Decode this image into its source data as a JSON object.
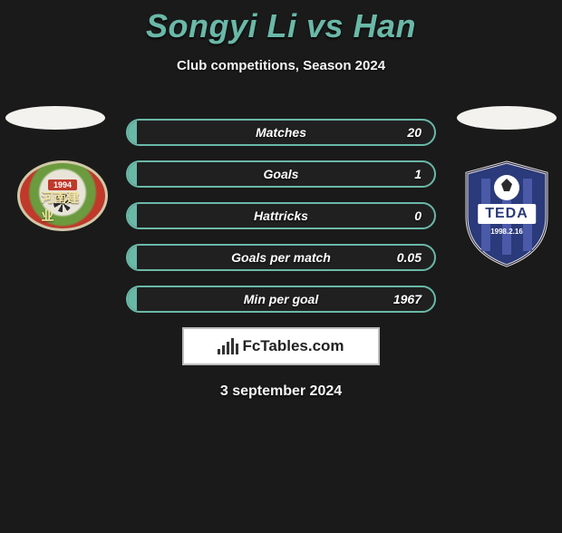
{
  "title": "Songyi Li vs Han",
  "subtitle": "Club competitions, Season 2024",
  "date_line": "3 september 2024",
  "branding": "FcTables.com",
  "colors": {
    "accent": "#6ab8a8",
    "background": "#1a1a1a",
    "ellipse": "#f4f2ee",
    "text": "#ffffff"
  },
  "stats": [
    {
      "label": "Matches",
      "value": "20",
      "fill_pct": 3
    },
    {
      "label": "Goals",
      "value": "1",
      "fill_pct": 3
    },
    {
      "label": "Hattricks",
      "value": "0",
      "fill_pct": 3
    },
    {
      "label": "Goals per match",
      "value": "0.05",
      "fill_pct": 3
    },
    {
      "label": "Min per goal",
      "value": "1967",
      "fill_pct": 3
    }
  ],
  "left_club": {
    "name": "Henan Jianye",
    "year": "1994",
    "cn_text": "河南建业",
    "badge_colors": {
      "outer": "#c0392b",
      "mid": "#6b9b3e",
      "inner": "#e8e4d8",
      "trim": "#d0c8a8"
    }
  },
  "right_club": {
    "name": "Tianjin TEDA",
    "short": "TEDA",
    "founded": "1998.2.16",
    "badge_colors": {
      "shield": "#2a3a7a",
      "stripes": "#4a5aa8",
      "ball": "#ffffff",
      "outline": "#1a1a4a"
    }
  },
  "branding_bars": [
    6,
    10,
    14,
    18,
    12
  ]
}
